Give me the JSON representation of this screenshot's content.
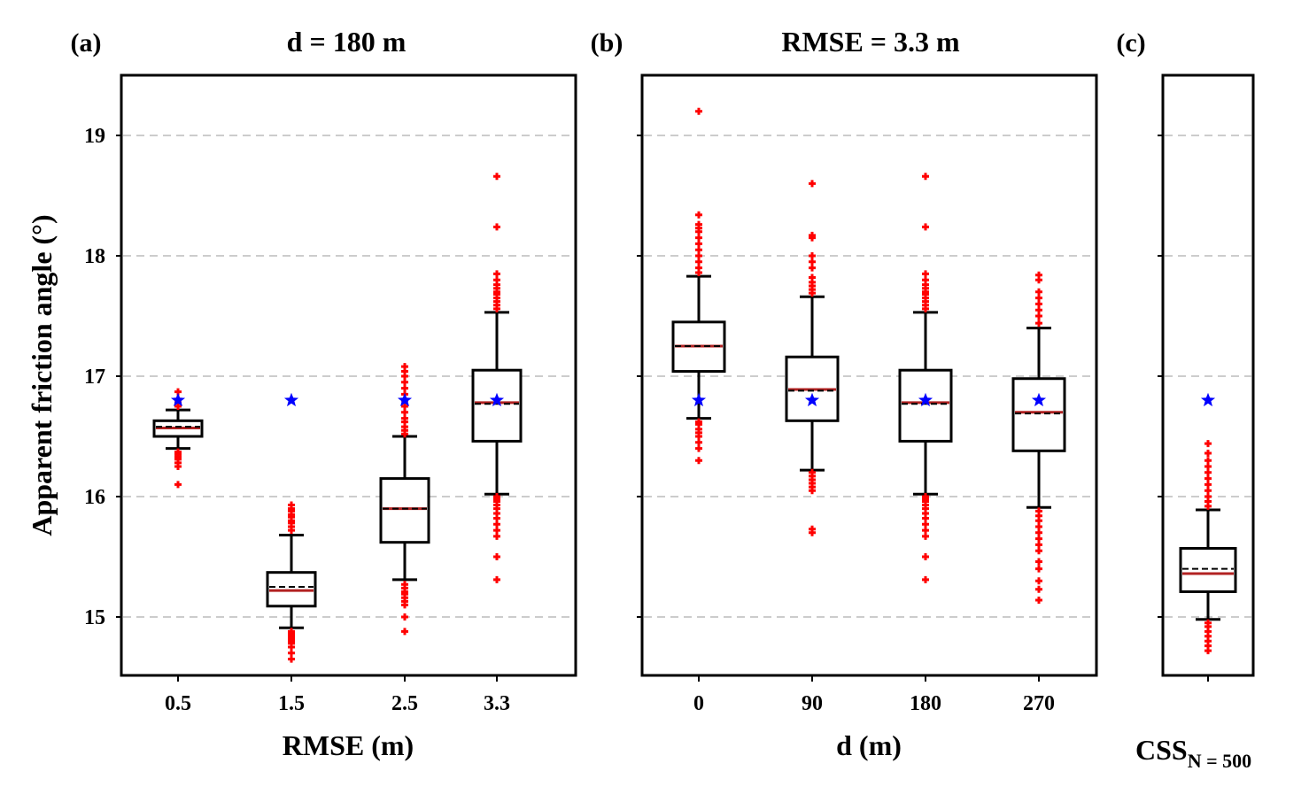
{
  "chart_data": [
    {
      "type": "box",
      "panel_label": "(a)",
      "title": "d = 180 m",
      "xlabel": "RMSE (m)",
      "ylabel": "Apparent friction angle (°)",
      "ylim": [
        14.5,
        19.5
      ],
      "yticks": [
        15,
        16,
        17,
        18,
        19
      ],
      "grid": "horizontal dashed",
      "categories": [
        "0.5",
        "1.5",
        "2.5",
        "3.3"
      ],
      "reference_value": 16.8,
      "boxes": [
        {
          "q1": 16.5,
          "median": 16.57,
          "mean": 16.58,
          "q3": 16.63,
          "whisker_low": 16.4,
          "whisker_high": 16.72,
          "outliers": [
            16.1,
            16.25,
            16.28,
            16.31,
            16.33,
            16.35,
            16.37,
            16.75,
            16.78,
            16.81,
            16.87
          ]
        },
        {
          "q1": 15.09,
          "median": 15.22,
          "mean": 15.25,
          "q3": 15.37,
          "whisker_low": 14.91,
          "whisker_high": 15.68,
          "outliers": [
            14.65,
            14.7,
            14.75,
            14.78,
            14.8,
            14.82,
            14.84,
            14.86,
            14.88,
            15.72,
            15.75,
            15.78,
            15.8,
            15.83,
            15.85,
            15.88,
            15.9,
            15.93
          ]
        },
        {
          "q1": 15.62,
          "median": 15.9,
          "mean": 15.9,
          "q3": 16.15,
          "whisker_low": 15.31,
          "whisker_high": 16.5,
          "outliers": [
            14.88,
            15.0,
            15.1,
            15.13,
            15.16,
            15.19,
            15.21,
            15.24,
            15.27,
            16.52,
            16.55,
            16.58,
            16.62,
            16.65,
            16.7,
            16.75,
            16.8,
            16.85,
            16.9,
            16.95,
            17.0,
            17.04,
            17.08
          ]
        },
        {
          "q1": 16.46,
          "median": 16.78,
          "mean": 16.77,
          "q3": 17.05,
          "whisker_low": 16.02,
          "whisker_high": 17.53,
          "outliers": [
            15.31,
            15.5,
            15.67,
            15.72,
            15.77,
            15.82,
            15.86,
            15.9,
            15.93,
            15.96,
            15.98,
            16.0,
            17.56,
            17.59,
            17.62,
            17.65,
            17.68,
            17.7,
            17.73,
            17.76,
            17.8,
            17.85,
            18.24,
            18.66
          ]
        }
      ]
    },
    {
      "type": "box",
      "panel_label": "(b)",
      "title": "RMSE = 3.3 m",
      "xlabel": "d (m)",
      "ylim": [
        14.5,
        19.5
      ],
      "grid": "horizontal dashed",
      "categories": [
        "0",
        "90",
        "180",
        "270"
      ],
      "reference_value": 16.8,
      "boxes": [
        {
          "q1": 17.04,
          "median": 17.25,
          "mean": 17.25,
          "q3": 17.45,
          "whisker_low": 16.65,
          "whisker_high": 17.83,
          "outliers": [
            16.3,
            16.4,
            16.45,
            16.5,
            16.53,
            16.56,
            16.6,
            16.62,
            17.86,
            17.9,
            17.95,
            18.0,
            18.05,
            18.1,
            18.15,
            18.2,
            18.23,
            18.26,
            18.34,
            19.2
          ]
        },
        {
          "q1": 16.63,
          "median": 16.89,
          "mean": 16.88,
          "q3": 17.16,
          "whisker_low": 16.22,
          "whisker_high": 17.66,
          "outliers": [
            15.7,
            15.73,
            16.05,
            16.08,
            16.11,
            16.14,
            16.17,
            16.2,
            17.69,
            17.72,
            17.75,
            17.78,
            17.82,
            17.9,
            17.95,
            18.0,
            18.15,
            18.17,
            18.6
          ]
        },
        {
          "q1": 16.46,
          "median": 16.78,
          "mean": 16.77,
          "q3": 17.05,
          "whisker_low": 16.02,
          "whisker_high": 17.53,
          "outliers": [
            15.31,
            15.5,
            15.67,
            15.72,
            15.77,
            15.82,
            15.86,
            15.9,
            15.93,
            15.96,
            15.98,
            16.0,
            17.56,
            17.59,
            17.62,
            17.65,
            17.68,
            17.7,
            17.73,
            17.76,
            17.8,
            17.85,
            18.24,
            18.66
          ]
        },
        {
          "q1": 16.38,
          "median": 16.7,
          "mean": 16.69,
          "q3": 16.98,
          "whisker_low": 15.91,
          "whisker_high": 17.4,
          "outliers": [
            15.14,
            15.23,
            15.3,
            15.4,
            15.46,
            15.55,
            15.6,
            15.65,
            15.7,
            15.75,
            15.8,
            15.84,
            15.88,
            17.44,
            17.5,
            17.55,
            17.6,
            17.65,
            17.7,
            17.8,
            17.84
          ]
        }
      ]
    },
    {
      "type": "box",
      "panel_label": "(c)",
      "title": "",
      "xlabel": "CSS",
      "xlabel_subscript": "N = 500",
      "ylim": [
        14.5,
        19.5
      ],
      "grid": "horizontal dashed",
      "categories": [
        ""
      ],
      "reference_value": 16.8,
      "boxes": [
        {
          "q1": 15.21,
          "median": 15.36,
          "mean": 15.4,
          "q3": 15.57,
          "whisker_low": 14.98,
          "whisker_high": 15.89,
          "outliers": [
            14.72,
            14.76,
            14.8,
            14.84,
            14.88,
            14.92,
            14.95,
            15.92,
            15.96,
            16.0,
            16.05,
            16.1,
            16.15,
            16.2,
            16.25,
            16.3,
            16.36,
            16.44
          ]
        }
      ]
    }
  ],
  "colors": {
    "frame": "#000000",
    "median_line": "#b22222",
    "mean_line": "#000000",
    "outlier": "#ff0000",
    "reference_star": "#0000ff",
    "grid": "#cccccc"
  }
}
